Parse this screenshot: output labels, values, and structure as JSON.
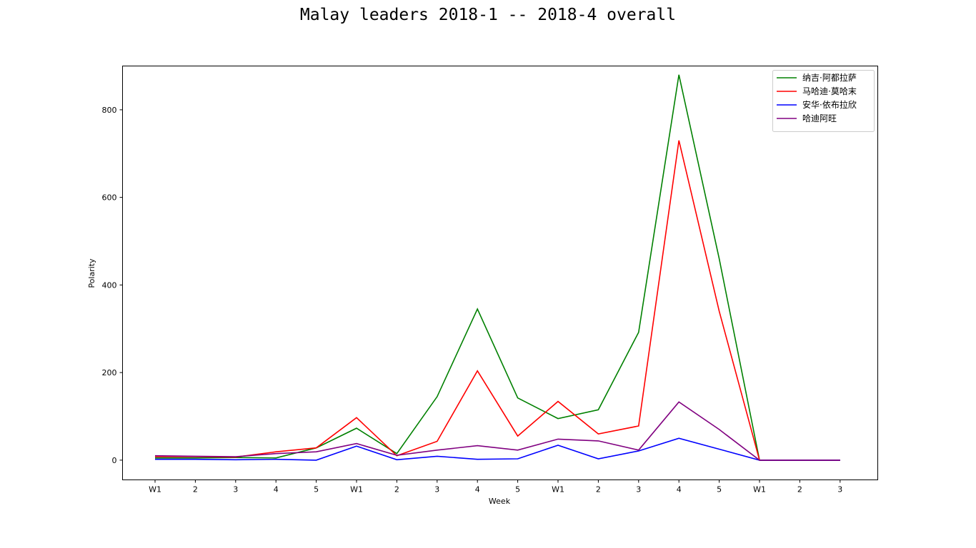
{
  "chart_data": {
    "type": "line",
    "title": "Malay leaders 2018-1 -- 2018-4 overall",
    "xlabel": "Week",
    "ylabel": "Polarity",
    "categories": [
      "W1",
      "2",
      "3",
      "4",
      "5",
      "W1",
      "2",
      "3",
      "4",
      "5",
      "W1",
      "2",
      "3",
      "4",
      "5",
      "W1",
      "2",
      "3"
    ],
    "ylim": [
      -45,
      900
    ],
    "yticks": [
      0,
      200,
      400,
      600,
      800
    ],
    "grid": false,
    "legend_position": "top-right",
    "series": [
      {
        "name": "纳吉·阿都拉萨",
        "color": "#008000",
        "values": [
          5,
          5,
          6,
          5,
          28,
          73,
          15,
          145,
          345,
          142,
          95,
          115,
          292,
          880,
          460,
          0,
          0,
          0
        ]
      },
      {
        "name": "马哈迪·莫哈末",
        "color": "#ff0000",
        "values": [
          8,
          8,
          7,
          19,
          28,
          97,
          10,
          43,
          204,
          55,
          134,
          60,
          78,
          730,
          340,
          0,
          0,
          0
        ]
      },
      {
        "name": "安华·依布拉欣",
        "color": "#0000ff",
        "values": [
          2,
          2,
          1,
          2,
          0,
          32,
          1,
          9,
          2,
          3,
          34,
          3,
          21,
          50,
          25,
          0,
          0,
          0
        ]
      },
      {
        "name": "哈迪阿旺",
        "color": "#800080",
        "values": [
          10,
          9,
          8,
          15,
          19,
          38,
          11,
          23,
          33,
          23,
          48,
          44,
          23,
          133,
          70,
          0,
          0,
          0
        ]
      }
    ]
  }
}
